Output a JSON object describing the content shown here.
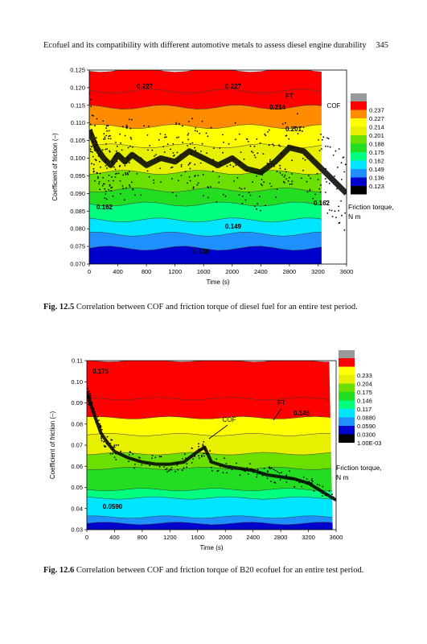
{
  "header": {
    "running_title": "Ecofuel and its compatibility with different automotive metals to assess diesel engine durability",
    "page_number": "345"
  },
  "colors": {
    "scale1": [
      "#000000",
      "#0000cd",
      "#1e90ff",
      "#00e5ff",
      "#00ff7f",
      "#22dd22",
      "#6be000",
      "#e6f000",
      "#ffff00",
      "#ff8c00",
      "#ff0000",
      "#999999"
    ],
    "scale2": [
      "#000000",
      "#0000cd",
      "#1e90ff",
      "#00e5ff",
      "#00ff7f",
      "#22dd22",
      "#6be000",
      "#e6f000",
      "#ffff00",
      "#ff0000",
      "#999999"
    ]
  },
  "figures": [
    {
      "caption_label": "Fig. 12.5",
      "caption_text": "Correlation between COF and friction torque of diesel fuel for an entire test period.",
      "chart_data": {
        "type": "heatmap",
        "xlabel": "Time (s)",
        "ylabel": "Coefficient of friction (–)",
        "xlim": [
          0,
          3600
        ],
        "ylim": [
          0.07,
          0.125
        ],
        "x_ticks": [
          "0",
          "400",
          "800",
          "1200",
          "1600",
          "2000",
          "2400",
          "2800",
          "3200",
          "3600"
        ],
        "y_ticks": [
          "0.070",
          "0.075",
          "0.080",
          "0.085",
          "0.090",
          "0.095",
          "0.100",
          "0.105",
          "0.110",
          "0.115",
          "0.120",
          "0.125"
        ],
        "legend_title": "Friction torque, N m",
        "legend_values": [
          "0.237",
          "0.227",
          "0.214",
          "0.201",
          "0.188",
          "0.175",
          "0.162",
          "0.149",
          "0.136",
          "0.123"
        ],
        "contour_labels": [
          "0.227",
          "0.227",
          "0.214",
          "0.201",
          "0.162",
          "0.162",
          "0.149",
          "0.136"
        ],
        "annotations": [
          "FT",
          "COF"
        ],
        "cof_series": {
          "x": [
            0,
            100,
            200,
            300,
            400,
            500,
            600,
            800,
            1000,
            1200,
            1400,
            1600,
            1800,
            2000,
            2200,
            2400,
            2600,
            2800,
            3000,
            3200,
            3400,
            3600
          ],
          "y": [
            0.108,
            0.103,
            0.1,
            0.098,
            0.101,
            0.099,
            0.101,
            0.098,
            0.1,
            0.099,
            0.102,
            0.1,
            0.098,
            0.1,
            0.097,
            0.096,
            0.099,
            0.103,
            0.102,
            0.098,
            0.094,
            0.09
          ]
        }
      }
    },
    {
      "caption_label": "Fig. 12.6",
      "caption_text": "Correlation between COF and friction torque of B20 ecofuel for an entire test period.",
      "chart_data": {
        "type": "heatmap",
        "xlabel": "Time (s)",
        "ylabel": "Coefficient of friction (–)",
        "xlim": [
          0,
          3600
        ],
        "ylim": [
          0.03,
          0.11
        ],
        "x_ticks": [
          "0",
          "400",
          "800",
          "1200",
          "1600",
          "2000",
          "2400",
          "2800",
          "3200",
          "3600"
        ],
        "y_ticks": [
          "0.03",
          "0.04",
          "0.05",
          "0.06",
          "0.07",
          "0.08",
          "0.09",
          "0.10",
          "0.11"
        ],
        "legend_title": "Friction torque, N m",
        "legend_values": [
          "0.233",
          "0.204",
          "0.175",
          "0.146",
          "0.117",
          "0.0880",
          "0.0590",
          "0.0300",
          "1.00E-03"
        ],
        "contour_labels": [
          "0.175",
          "0.146",
          "0.0590"
        ],
        "annotations": [
          "FT",
          "COF"
        ],
        "cof_series": {
          "x": [
            0,
            50,
            100,
            200,
            300,
            400,
            600,
            800,
            1000,
            1200,
            1400,
            1600,
            1700,
            1800,
            2000,
            2200,
            2400,
            2600,
            2800,
            3000,
            3200,
            3400,
            3600
          ],
          "y": [
            0.095,
            0.09,
            0.085,
            0.076,
            0.071,
            0.067,
            0.064,
            0.062,
            0.061,
            0.061,
            0.062,
            0.067,
            0.069,
            0.062,
            0.06,
            0.059,
            0.058,
            0.056,
            0.055,
            0.054,
            0.052,
            0.048,
            0.044
          ]
        }
      }
    }
  ]
}
